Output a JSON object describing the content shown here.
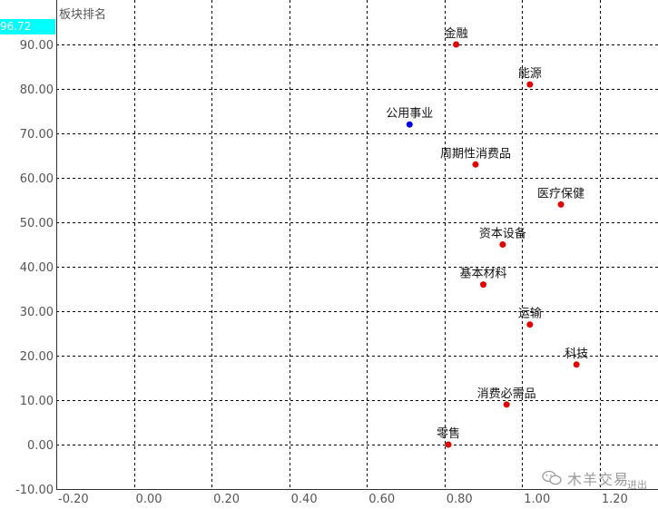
{
  "panel": {
    "title": "板块排名",
    "cursor_value": "96.72"
  },
  "watermark": {
    "text": "木羊交易",
    "sub": "进出",
    "icon": "wechat-icon"
  },
  "colors": {
    "background": "#ffffff",
    "grid": "#000000",
    "point_default": "#e00000",
    "point_highlight": "#0000e0",
    "cursor_box": "#00ffff",
    "tick_text": "#555555"
  },
  "chart_data": {
    "type": "scatter",
    "title": "板块排名",
    "xlabel": "",
    "ylabel": "",
    "xlim": [
      -0.2,
      1.35
    ],
    "ylim": [
      -10,
      100
    ],
    "x_ticks": [
      -0.2,
      0.0,
      0.2,
      0.4,
      0.6,
      0.8,
      1.0,
      1.2
    ],
    "x_tick_labels": [
      "-0.20",
      "0.00",
      "0.20",
      "0.40",
      "0.60",
      "0.80",
      "1.00",
      "1.20"
    ],
    "y_ticks": [
      -10,
      0,
      10,
      20,
      30,
      40,
      50,
      60,
      70,
      80,
      90
    ],
    "y_tick_labels": [
      "-10.00",
      "0.00",
      "10.00",
      "20.00",
      "30.00",
      "40.00",
      "50.00",
      "60.00",
      "70.00",
      "80.00",
      "90.00"
    ],
    "grid": true,
    "legend": "none",
    "points": [
      {
        "label": "金融",
        "x": 0.83,
        "y": 90.0,
        "color": "#e00000"
      },
      {
        "label": "能源",
        "x": 1.02,
        "y": 81.0,
        "color": "#e00000"
      },
      {
        "label": "公用事业",
        "x": 0.71,
        "y": 72.0,
        "color": "#0000e0"
      },
      {
        "label": "周期性消费品",
        "x": 0.88,
        "y": 63.0,
        "color": "#e00000"
      },
      {
        "label": "医疗保健",
        "x": 1.1,
        "y": 54.0,
        "color": "#e00000"
      },
      {
        "label": "资本设备",
        "x": 0.95,
        "y": 45.0,
        "color": "#e00000"
      },
      {
        "label": "基本材料",
        "x": 0.9,
        "y": 36.0,
        "color": "#e00000"
      },
      {
        "label": "运输",
        "x": 1.02,
        "y": 27.0,
        "color": "#e00000"
      },
      {
        "label": "科技",
        "x": 1.14,
        "y": 18.0,
        "color": "#e00000"
      },
      {
        "label": "消费必需品",
        "x": 0.96,
        "y": 9.0,
        "color": "#e00000"
      },
      {
        "label": "零售",
        "x": 0.81,
        "y": 0.0,
        "color": "#e00000"
      }
    ]
  }
}
